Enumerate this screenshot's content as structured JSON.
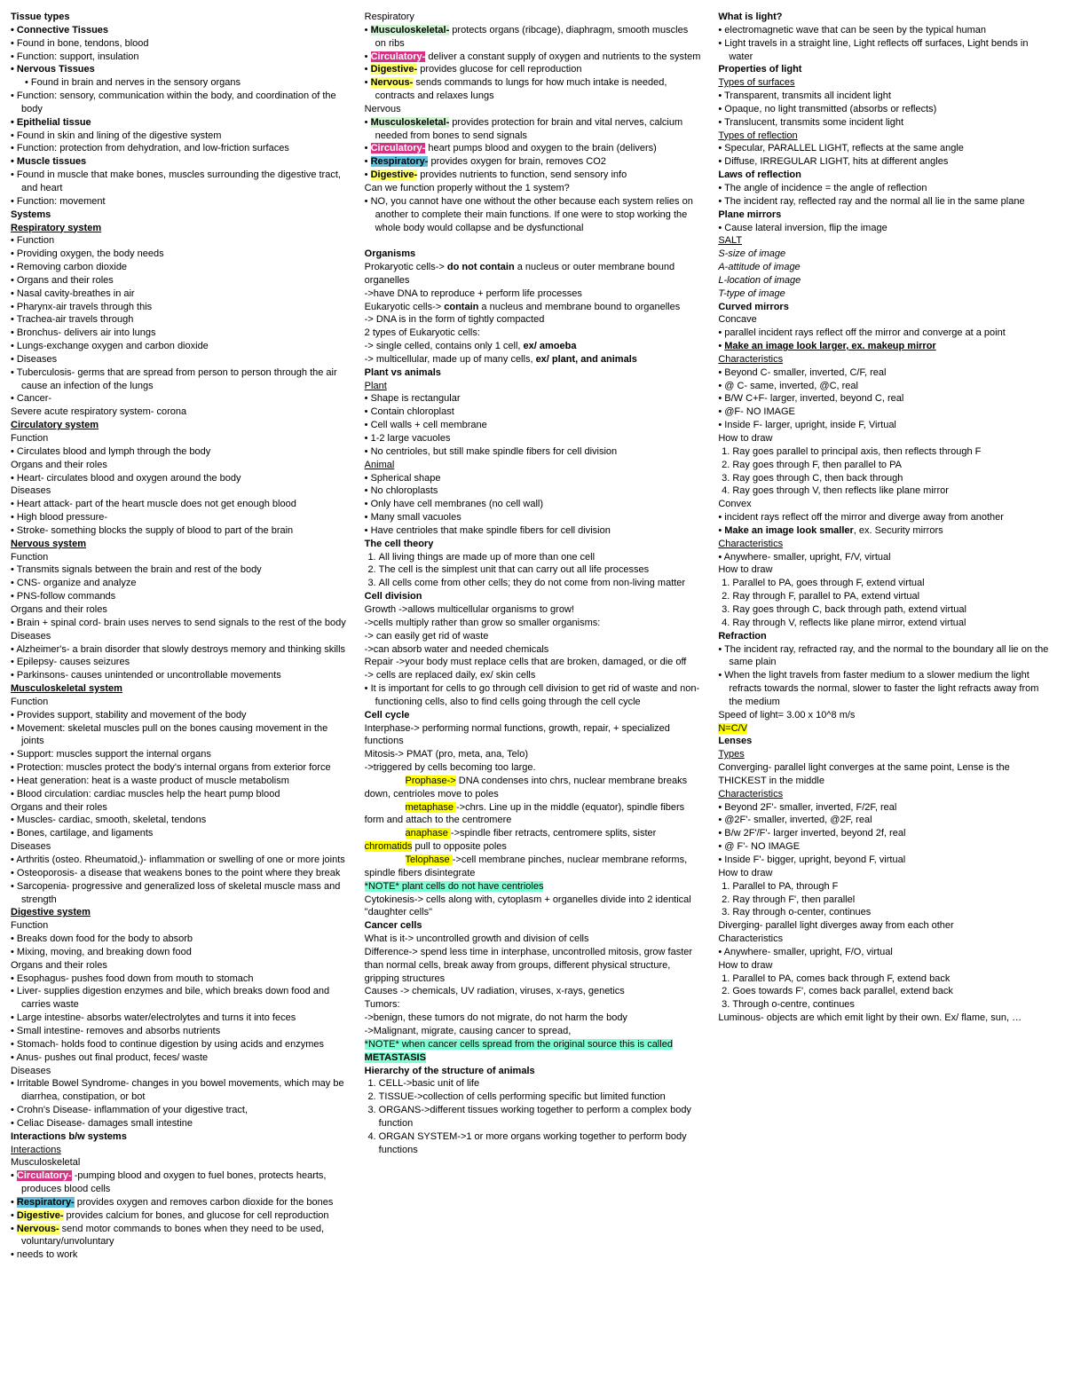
{
  "col1": {
    "tissue_header": "Tissue types",
    "connective": "Connective Tissues",
    "conn_items": [
      "Found in bone, tendons, blood",
      "Function: support, insulation"
    ],
    "nervous_t": "Nervous Tissues",
    "nerv_items": [
      "Found in brain and nerves in the sensory organs",
      "Function: sensory, communication within the body, and coordination of the body"
    ],
    "epithelial": "Epithelial tissue",
    "epi_items": [
      "Found in skin and lining of the digestive system",
      "Function: protection from dehydration, and low-friction surfaces"
    ],
    "muscle_t": "Muscle tissues",
    "muscle_items": [
      "Found in muscle that make bones, muscles surrounding the digestive tract, and heart",
      "Function: movement"
    ],
    "systems": "Systems",
    "resp_sys": "Respiratory system",
    "function_lbl": "Function",
    "resp_fn": [
      "Providing oxygen, the body needs",
      "Removing carbon dioxide"
    ],
    "organs_lbl": "Organs and their roles",
    "resp_organs": [
      "Nasal cavity-breathes in air",
      "Pharynx-air travels through this",
      "Trachea-air travels through",
      "Bronchus- delivers air into lungs",
      "Lungs-exchange oxygen and carbon dioxide"
    ],
    "diseases_lbl": "Diseases",
    "resp_dis": [
      "Tuberculosis- germs that are spread from person to person through the air cause an infection of the lungs",
      "Cancer-",
      "Severe acute respiratory system- corona"
    ],
    "circ_sys": "Circulatory system",
    "circ_fn": [
      "Circulates blood and lymph through the body"
    ],
    "circ_organs": [
      "Heart- circulates blood and oxygen around the body"
    ],
    "circ_dis": [
      "Heart attack- part of the heart muscle does not get enough blood",
      "High blood pressure-",
      "Stroke- something blocks the supply of blood to part of the brain"
    ],
    "nerv_sys": "Nervous system",
    "nerv_fn": [
      "Transmits signals between the brain and rest of the body",
      "CNS- organize and analyze",
      "PNS-follow commands"
    ],
    "nerv_organs": [
      "Brain + spinal cord- brain uses nerves to send signals to the rest of the body"
    ],
    "nerv_dis": [
      "Alzheimer's- a brain disorder that slowly destroys memory and thinking skills",
      "Epilepsy- causes seizures",
      "Parkinsons- causes unintended or uncontrollable movements"
    ],
    "musc_sys": "Musculoskeletal system",
    "musc_fn": [
      "Provides support, stability and movement of the body",
      "Movement: skeletal muscles pull on the bones causing movement in the joints",
      "Support: muscles support the internal organs",
      "Protection: muscles protect the body's internal organs from exterior force",
      "Heat generation: heat is a waste product of muscle metabolism",
      "Blood circulation: cardiac muscles help the heart pump blood"
    ],
    "musc_organs": [
      "Muscles- cardiac, smooth, skeletal, tendons",
      "Bones, cartilage, and ligaments"
    ],
    "musc_dis": [
      "Arthritis (osteo. Rheumatoid,)- inflammation or swelling of one or more joints",
      "Osteoporosis- a disease that weakens bones to the point where they break",
      "Sarcopenia- progressive and generalized loss of skeletal muscle mass and strength"
    ],
    "dig_sys": "Digestive system",
    "dig_fn": [
      "Breaks down food for the body to absorb",
      "Mixing, moving, and breaking down food"
    ],
    "dig_organs": [
      "Esophagus- pushes food down from mouth to stomach",
      "Liver- supplies digestion enzymes and bile, which breaks down food and carries waste",
      "Large intestine- absorbs water/electrolytes and turns it into feces",
      "Small intestine- removes and absorbs nutrients",
      "Stomach- holds food to continue digestion by using acids and enzymes",
      "Anus- pushes out final product, feces/ waste"
    ],
    "dig_dis": [
      "Irritable Bowel Syndrome- changes in you bowel movements, which may be diarrhea, constipation, or bot",
      "Crohn's Disease- inflammation of your digestive tract,",
      "Celiac Disease- damages small intestine"
    ],
    "interactions_h": "Interactions b/w systems",
    "interactions_u": "Interactions",
    "musculo_lbl": "Musculoskeletal",
    "circ_lbl": "Circulatory-",
    "circ_txt": " -pumping blood and oxygen to fuel bones, protects hearts, produces blood cells",
    "resp_lbl": "Respiratory-",
    "resp_txt": " provides oxygen and removes carbon dioxide for the bones",
    "dig_lbl_i": "Digestive-",
    "dig_txt": " provides calcium for bones, and glucose for cell reproduction",
    "nerv_lbl_i": "Nervous-",
    "nerv_txt": " send motor commands to bones when they need to be used, voluntary/unvoluntary",
    "needs": "needs to work"
  },
  "col2": {
    "resp_h": "Respiratory",
    "musc_lbl": "Musculoskeletal-",
    "musc_txt": " protects organs (ribcage), diaphragm, smooth muscles on ribs",
    "circ_lbl": "Circulatory-",
    "circ_txt": " deliver a constant supply of oxygen and nutrients to the system",
    "dig_lbl": "Digestive-",
    "dig_txt": " provides glucose for cell reproduction",
    "nerv_lbl": "Nervous-",
    "nerv_txt": " sends commands to lungs for how much intake is needed, contracts and relaxes lungs",
    "nervous_h": "Nervous",
    "n_musc_txt": " provides protection for brain and vital nerves, calcium needed from bones to send signals",
    "n_circ_txt": " heart pumps blood and oxygen to the brain (delivers)",
    "n_resp_lbl": "Respiratory-",
    "n_resp_txt": " provides oxygen for brain, removes CO2",
    "n_dig_txt": " provides nutrients to function, send sensory info",
    "can_we": "Can we function properly without the 1 system?",
    "can_we_ans": "NO, you cannot have one without the other because each system relies on another to complete their main functions. If one were to stop working the whole body would collapse and be dysfunctional",
    "organisms": "Organisms",
    "prok1": "Prokaryotic cells-> ",
    "prok1b": "do not contain",
    "prok1c": " a nucleus or outer membrane bound organelles",
    "prok2": " ->have DNA to reproduce + perform life processes",
    "euk1": "Eukaryotic cells-> ",
    "euk1b": "contain",
    "euk1c": " a nucleus and membrane bound to organelles",
    "euk2": "-> DNA is in the form of tightly compacted",
    "euk3": "2 types of Eukaryotic cells:",
    "euk4a": "-> single celled, contains only 1 cell, ",
    "euk4b": "ex/ amoeba",
    "euk5a": "-> multicellular, made up of many cells, ",
    "euk5b": "ex/ plant, and animals",
    "plant_vs": "Plant vs animals",
    "plant_h": "Plant",
    "plant_items": [
      "Shape is rectangular",
      "Contain chloroplast",
      "Cell walls + cell membrane",
      "1-2 large vacuoles",
      "No centrioles, but still make spindle fibers for cell division"
    ],
    "animal_h": "Animal",
    "animal_items": [
      "Spherical shape",
      "No chloroplasts",
      "Only have cell membranes (no cell wall)",
      "Many small vacuoles",
      "Have centrioles that make spindle fibers for cell division"
    ],
    "cell_theory": "The cell theory",
    "ct1": "All living things are made up of more than one cell",
    "ct2": "The cell is the simplest unit that can carry out all life processes",
    "ct3": "All cells come from other cells; they do not come from non-living matter",
    "cell_div": "Cell division",
    "cd1": "Growth ->allows multicellular organisms to grow!",
    "cd2": "->cells multiply rather than grow so smaller organisms:",
    "cd3": "-> can easily get rid of waste",
    "cd4": "->can absorb water and needed chemicals",
    "cd5": "Repair ->your body must replace cells that are broken, damaged, or die off",
    "cd6": "-> cells are replaced daily, ex/ skin cells",
    "cd7": "It is important for cells to go through cell division to get rid of waste and non-functioning cells, also to find cells going through the cell cycle",
    "cell_cycle": "Cell cycle",
    "cc1": "Interphase-> performing normal functions, growth, repair, + specialized functions",
    "cc2": "Mitosis-> PMAT (pro, meta, ana, Telo)",
    "cc3": "->triggered by cells becoming too large.",
    "prophase": "Prophase->",
    "prophase_txt": " DNA condenses into chrs, nuclear membrane breaks down, centrioles move to poles",
    "metaphase": "metaphase ",
    "metaphase_txt": "->chrs. Line up in the middle (equator), spindle fibers form and attach to the centromere",
    "anaphase": "anaphase ",
    "anaphase_txt": "->spindle fiber retracts, centromere splits, sister ",
    "chromatids": "chromatids",
    "anaphase_txt2": " pull to opposite poles",
    "telophase": "Telophase ",
    "telophase_txt": "->cell membrane pinches, nuclear membrane reforms, spindle fibers disintegrate",
    "note_plant": "*NOTE* plant cells do not have centrioles",
    "cytok": "Cytokinesis-> cells along with, cytoplasm + organelles divide into 2 identical \"daughter cells\"",
    "cancer_h": "Cancer cells",
    "cancer1": "What is it-> uncontrolled growth and division of cells",
    "cancer2": "Difference-> spend less time in interphase, uncontrolled mitosis, grow faster than normal cells, break away from groups, different physical structure, gripping structures",
    "cancer3": "Causes -> chemicals, UV radiation, viruses, x-rays, genetics",
    "tumors": "Tumors:",
    "tumor1": "->benign, these tumors do not migrate, do not harm the body",
    "tumor2": "->Malignant, migrate, causing cancer to spread,",
    "note_meta1": "*NOTE* when cancer cells spread from the original source this is called ",
    "note_meta2": "METASTASIS",
    "hierarchy": "Hierarchy of the structure of animals",
    "h1": "CELL->basic unit of life",
    "h2": "TISSUE->collection of cells performing specific but limited function",
    "h3": "ORGANS->different tissues working together to perform a complex body function",
    "h4": "ORGAN SYSTEM->1 or more organs working together to perform body functions"
  },
  "col3": {
    "what_light": "What is light?",
    "light_items": [
      "electromagnetic wave that can be seen by the typical human",
      "Light travels in a straight line, Light reflects off surfaces, Light bends in water"
    ],
    "prop_light": "Properties of light",
    "types_surf": "Types of surfaces",
    "surf_items": [
      "Transparent, transmits all incident light",
      "Opaque, no light transmitted (absorbs or reflects)",
      "Translucent, transmits some incident light"
    ],
    "types_refl": "Types of reflection",
    "refl_items": [
      "Specular, PARALLEL LIGHT, reflects at the same angle",
      "Diffuse, IRREGULAR LIGHT, hits at different angles"
    ],
    "laws_refl": "Laws of reflection",
    "law_items": [
      "The angle of incidence = the angle of reflection",
      "The incident ray, reflected ray and the normal all lie in the same plane"
    ],
    "plane_m": "Plane mirrors",
    "pm1": "Cause lateral inversion, flip the image",
    "salt": "SALT",
    "salt_s": "S-size of image",
    "salt_a": "A-attitude of image",
    "salt_l": "L-location of image",
    "salt_t": "T-type of image",
    "curved_m": "Curved mirrors",
    "concave": "Concave",
    "conc1": "parallel incident rays reflect off the mirror and converge at a point",
    "conc2a": "Make an image look larger, ex. makeup mirror",
    "chars": "Characteristics",
    "conc_chars": [
      "Beyond C- smaller, inverted, C/F, real",
      "@ C- same, inverted, @C, real",
      "B/W C+F- larger, inverted, beyond C, real",
      "@F- NO IMAGE",
      "Inside F- larger, upright, inside F, Virtual"
    ],
    "how_draw": "How to draw",
    "conc_draw": [
      "Ray goes parallel to principal axis, then reflects through F",
      "Ray goes through F, then parallel to PA",
      "Ray goes through C, then back through",
      "Ray goes through V, then reflects like plane mirror"
    ],
    "convex": "Convex",
    "conv1": "incident rays reflect off the mirror and diverge away from another",
    "conv2a": "Make an image look smaller",
    "conv2b": ", ex. Security mirrors",
    "conv_chars": [
      "Anywhere- smaller, upright, F/V, virtual"
    ],
    "conv_draw": [
      "Parallel to PA, goes through F, extend virtual",
      "Ray through F, parallel to PA, extend virtual",
      "Ray goes through C, back through path, extend virtual",
      "Ray through V, reflects like plane mirror, extend virtual"
    ],
    "refraction": "Refraction",
    "refr_items": [
      "The incident ray, refracted ray, and the normal to the boundary all lie on the same plain",
      "When the light travels from faster medium to a slower medium the light refracts towards the normal, slower to faster the light refracts away from the medium"
    ],
    "speed": "Speed of light= 3.00 x 10^8 m/s",
    "ncv": "N=C/V",
    "lenses": "Lenses",
    "types_l": "Types",
    "converging": "Converging- parallel light converges at the same point, Lense is the THICKEST in the middle",
    "conv_l_chars": [
      "Beyond 2F'- smaller, inverted, F/2F, real",
      "@2F'- smaller, inverted, @2F, real",
      "B/w 2F'/F'- larger inverted, beyond 2f, real",
      "@ F'- NO IMAGE",
      "Inside F'- bigger, upright, beyond F, virtual"
    ],
    "conv_l_draw": [
      "Parallel to PA, through F",
      "Ray through F', then parallel",
      "Ray through o-center, continues"
    ],
    "diverging": "Diverging- parallel light diverges away from each other",
    "div_chars": [
      "Anywhere- smaller, upright, F/O, virtual"
    ],
    "div_draw": [
      "Parallel to PA, comes back through F, extend back",
      "Goes towards F', comes back parallel, extend back",
      "Through o-centre, continues"
    ],
    "luminous": "Luminous- objects are which emit light by their own. Ex/ flame, sun, …"
  }
}
